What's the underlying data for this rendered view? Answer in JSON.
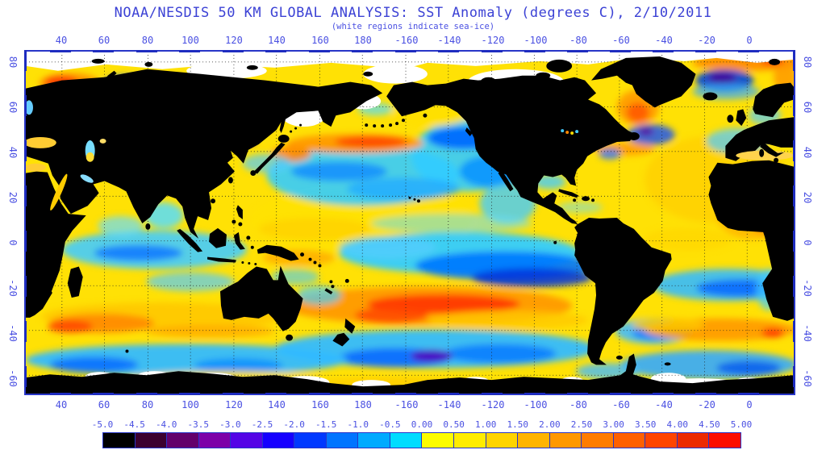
{
  "title": "NOAA/NESDIS 50 KM GLOBAL ANALYSIS: SST Anomaly (degrees C), 2/10/2011",
  "subtitle": "(white regions indicate sea-ice)",
  "axes": {
    "top": [
      "40",
      "60",
      "80",
      "100",
      "120",
      "140",
      "160",
      "180",
      "-160",
      "-140",
      "-120",
      "-100",
      "-80",
      "-60",
      "-40",
      "-20",
      "0"
    ],
    "bottom": [
      "40",
      "60",
      "80",
      "100",
      "120",
      "140",
      "160",
      "180",
      "-160",
      "-140",
      "-120",
      "-100",
      "-80",
      "-60",
      "-40",
      "-20",
      "0"
    ],
    "left": [
      "80",
      "60",
      "40",
      "20",
      "0",
      "-20",
      "-40",
      "-60"
    ],
    "right": [
      "80",
      "60",
      "40",
      "20",
      "0",
      "-20",
      "-40",
      "-60"
    ]
  },
  "colorbar": {
    "labels": [
      "-5.0",
      "-4.5",
      "-4.0",
      "-3.5",
      "-3.0",
      "-2.5",
      "-2.0",
      "-1.5",
      "-1.0",
      "-0.5",
      "0.00",
      "0.50",
      "1.00",
      "1.50",
      "2.00",
      "2.50",
      "3.00",
      "3.50",
      "4.00",
      "4.50",
      "5.00"
    ],
    "colors": [
      "#000000",
      "#3c0030",
      "#63006b",
      "#7d00a8",
      "#5404e6",
      "#1500ff",
      "#0038ff",
      "#0074ff",
      "#00aaff",
      "#00dcff",
      "#fcfc00",
      "#ffec00",
      "#ffd400",
      "#ffb400",
      "#ff9800",
      "#ff7c00",
      "#ff6000",
      "#ff4400",
      "#ec2a00",
      "#fc0d00"
    ]
  },
  "legend_meaning": {
    "land_color": "#000000",
    "sea_ice_color": "#ffffff",
    "units": "degrees C"
  },
  "colors": {
    "frame": "#2836c8",
    "tick": "#1e2cc0",
    "label_text": "#4a50e2",
    "title_text": "#3c42d5",
    "ocean_base": "#ffe105"
  }
}
